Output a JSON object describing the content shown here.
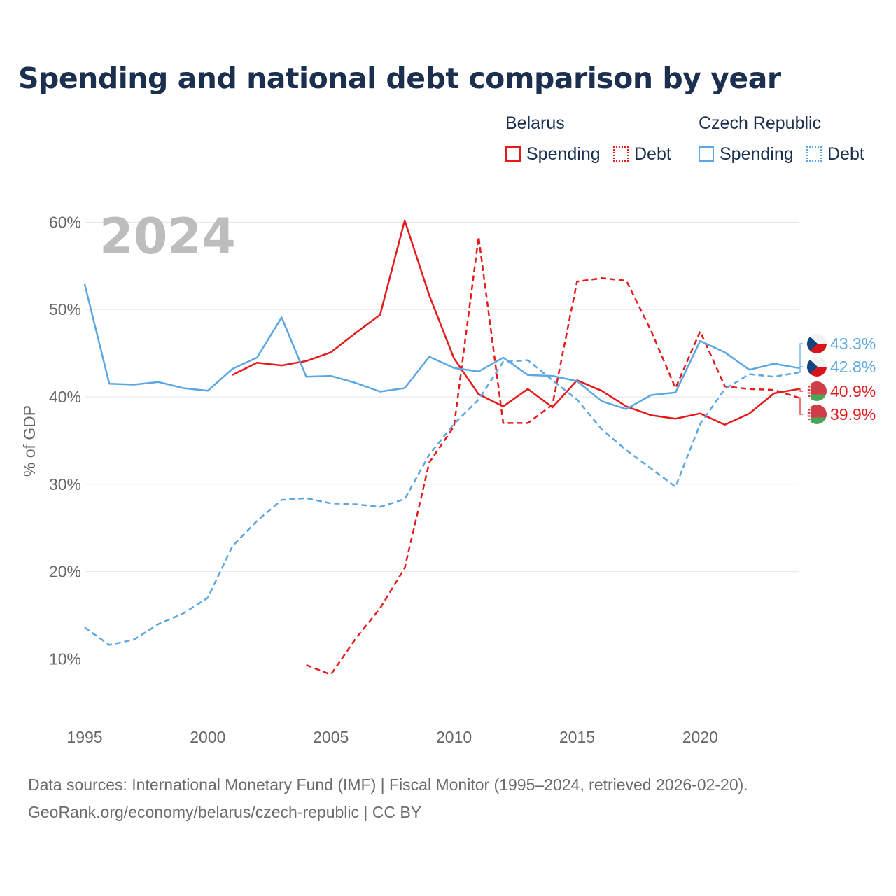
{
  "title": "Spending and national debt comparison by year",
  "legend": {
    "groups": [
      {
        "name": "Belarus",
        "color": "#e41a1c",
        "items": [
          {
            "label": "Spending",
            "style": "solid"
          },
          {
            "label": "Debt",
            "style": "dotted"
          }
        ]
      },
      {
        "name": "Czech Republic",
        "color": "#5aa7e3",
        "items": [
          {
            "label": "Spending",
            "style": "solid"
          },
          {
            "label": "Debt",
            "style": "dotted"
          }
        ]
      }
    ]
  },
  "chart_data": {
    "type": "line",
    "year_watermark": "2024",
    "ylabel": "% of GDP",
    "xlim": [
      1995,
      2024
    ],
    "ylim": [
      4.5,
      63
    ],
    "xticks": [
      1995,
      2000,
      2005,
      2010,
      2015,
      2020
    ],
    "yticks": [
      10,
      20,
      30,
      40,
      50,
      60
    ],
    "ytick_labels": [
      "10%",
      "20%",
      "30%",
      "40%",
      "50%",
      "60%"
    ],
    "series": [
      {
        "name": "Belarus Spending",
        "country": "Belarus",
        "color": "#e41a1c",
        "dash": false,
        "x": [
          2001,
          2002,
          2003,
          2004,
          2005,
          2006,
          2007,
          2008,
          2009,
          2010,
          2011,
          2012,
          2013,
          2014,
          2015,
          2016,
          2017,
          2018,
          2019,
          2020,
          2021,
          2022,
          2023,
          2024
        ],
        "values": [
          42.5,
          43.9,
          43.6,
          44.1,
          45.1,
          47.3,
          49.4,
          60.2,
          51.6,
          44.4,
          40.3,
          38.9,
          40.9,
          38.8,
          41.9,
          40.7,
          38.9,
          37.9,
          37.5,
          38.1,
          36.8,
          38.1,
          40.4,
          40.9
        ]
      },
      {
        "name": "Belarus Debt",
        "country": "Belarus",
        "color": "#e41a1c",
        "dash": true,
        "x": [
          2004,
          2005,
          2006,
          2007,
          2008,
          2009,
          2010,
          2011,
          2012,
          2013,
          2014,
          2015,
          2016,
          2017,
          2018,
          2019,
          2020,
          2021,
          2022,
          2023,
          2024
        ],
        "values": [
          9.3,
          8.2,
          12.3,
          15.8,
          20.4,
          32.5,
          36.6,
          58.3,
          37.0,
          37.0,
          39.1,
          53.2,
          53.6,
          53.3,
          47.6,
          41.0,
          47.5,
          41.2,
          40.9,
          40.8,
          39.9
        ]
      },
      {
        "name": "Czech Republic Spending",
        "country": "Czech Republic",
        "color": "#5aa7e3",
        "dash": false,
        "x": [
          1995,
          1996,
          1997,
          1998,
          1999,
          2000,
          2001,
          2002,
          2003,
          2004,
          2005,
          2006,
          2007,
          2008,
          2009,
          2010,
          2011,
          2012,
          2013,
          2014,
          2015,
          2016,
          2017,
          2018,
          2019,
          2020,
          2021,
          2022,
          2023,
          2024
        ],
        "values": [
          52.9,
          41.5,
          41.4,
          41.7,
          41.0,
          40.7,
          43.2,
          44.5,
          49.1,
          42.3,
          42.4,
          41.6,
          40.6,
          41.0,
          44.6,
          43.3,
          42.9,
          44.5,
          42.5,
          42.4,
          41.8,
          39.5,
          38.6,
          40.2,
          40.5,
          46.4,
          45.1,
          43.1,
          43.8,
          43.3
        ]
      },
      {
        "name": "Czech Republic Debt",
        "country": "Czech Republic",
        "color": "#5aa7e3",
        "dash": true,
        "x": [
          1995,
          1996,
          1997,
          1998,
          1999,
          2000,
          2001,
          2002,
          2003,
          2004,
          2005,
          2006,
          2007,
          2008,
          2009,
          2010,
          2011,
          2012,
          2013,
          2014,
          2015,
          2016,
          2017,
          2018,
          2019,
          2020,
          2021,
          2022,
          2023,
          2024
        ],
        "values": [
          13.6,
          11.6,
          12.2,
          14.0,
          15.2,
          17.0,
          22.9,
          25.8,
          28.2,
          28.4,
          27.8,
          27.7,
          27.4,
          28.3,
          33.4,
          36.9,
          39.7,
          44.0,
          44.2,
          41.9,
          39.7,
          36.3,
          33.9,
          31.8,
          29.7,
          36.9,
          40.9,
          42.6,
          42.3,
          42.8
        ]
      }
    ],
    "end_labels": [
      {
        "text": "43.3%",
        "value": 43.3,
        "country": "Czech Republic",
        "color": "#5aa7e3",
        "flag": "czech-flag"
      },
      {
        "text": "42.8%",
        "value": 42.8,
        "country": "Czech Republic",
        "color": "#5aa7e3",
        "flag": "czech-flag"
      },
      {
        "text": "40.9%",
        "value": 40.9,
        "country": "Belarus",
        "color": "#e41a1c",
        "flag": "belarus-flag"
      },
      {
        "text": "39.9%",
        "value": 39.9,
        "country": "Belarus",
        "color": "#e41a1c",
        "flag": "belarus-flag"
      }
    ]
  },
  "footer": {
    "line1": "Data sources: International Monetary Fund (IMF) | Fiscal Monitor (1995–2024, retrieved 2026-02-20).",
    "line2": "GeoRank.org/economy/belarus/czech-republic | CC BY"
  }
}
